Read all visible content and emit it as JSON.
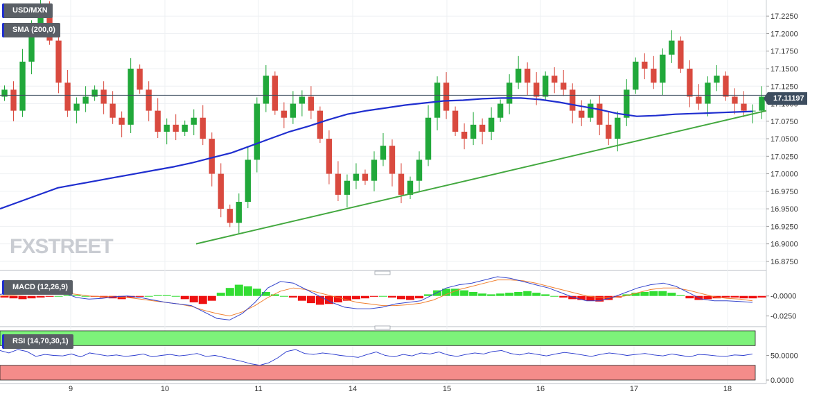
{
  "chart_data": [
    {
      "panel": "price",
      "type": "candlestick",
      "legend": [
        "USD/MXN",
        "SMA (200,0)"
      ],
      "yticks": [
        "17.2250",
        "17.2000",
        "17.1750",
        "17.1500",
        "17.1250",
        "17.1000",
        "17.0750",
        "17.0500",
        "17.0250",
        "17.0000",
        "16.9750",
        "16.9500",
        "16.9250",
        "16.9000",
        "16.8750"
      ],
      "ylim": [
        16.865,
        17.244
      ],
      "last_price": "17.11197",
      "xticks": [
        "9",
        "10",
        "11",
        "14",
        "15",
        "16",
        "17",
        "18"
      ],
      "close_path": [
        17.12,
        17.09,
        17.16,
        17.21,
        17.24,
        17.19,
        17.13,
        17.09,
        17.1,
        17.11,
        17.12,
        17.1,
        17.08,
        17.07,
        17.15,
        17.12,
        17.09,
        17.06,
        17.07,
        17.06,
        17.07,
        17.08,
        17.05,
        17.0,
        16.95,
        16.93,
        16.96,
        17.02,
        17.1,
        17.14,
        17.09,
        17.08,
        17.1,
        17.11,
        17.09,
        17.05,
        17.0,
        16.97,
        16.99,
        17.0,
        16.99,
        17.02,
        17.04,
        17.0,
        16.97,
        16.99,
        17.02,
        17.08,
        17.13,
        17.09,
        17.06,
        17.05,
        17.07,
        17.06,
        17.08,
        17.1,
        17.13,
        17.15,
        17.13,
        17.11,
        17.14,
        17.13,
        17.12,
        17.09,
        17.08,
        17.1,
        17.07,
        17.05,
        17.08,
        17.12,
        17.16,
        17.15,
        17.13,
        17.17,
        17.19,
        17.15,
        17.11,
        17.1,
        17.13,
        17.14,
        17.11,
        17.1,
        17.09,
        17.09,
        17.11
      ],
      "sma_200": [
        16.95,
        16.96,
        16.97,
        16.98,
        16.985,
        16.99,
        16.995,
        17.0,
        17.005,
        17.01,
        17.016,
        17.023,
        17.03,
        17.04,
        17.05,
        17.06,
        17.068,
        17.077,
        17.085,
        17.09,
        17.094,
        17.098,
        17.101,
        17.104,
        17.105,
        17.107,
        17.108,
        17.108,
        17.106,
        17.102,
        17.097,
        17.092,
        17.086,
        17.082,
        17.083,
        17.085,
        17.086,
        17.087,
        17.088,
        17.089
      ],
      "trendline": {
        "from": 16.9,
        "to": 17.09
      }
    },
    {
      "panel": "macd",
      "type": "histogram+line",
      "legend": "MACD (12,26,9)",
      "yticks": [
        "-0.0000",
        "-0.0250"
      ],
      "histogram": [
        -0.002,
        -0.003,
        -0.004,
        -0.003,
        -0.002,
        -0.001,
        0.0,
        0.001,
        0.001,
        0.0,
        -0.001,
        -0.002,
        -0.003,
        -0.004,
        -0.002,
        -0.001,
        0.0,
        0.001,
        0.001,
        0.0,
        -0.004,
        -0.008,
        -0.01,
        -0.006,
        0.004,
        0.01,
        0.014,
        0.012,
        0.009,
        0.005,
        0.002,
        0.0,
        -0.002,
        -0.006,
        -0.009,
        -0.011,
        -0.01,
        -0.008,
        -0.006,
        -0.004,
        -0.003,
        -0.001,
        0.0,
        -0.002,
        -0.004,
        -0.005,
        -0.003,
        0.002,
        0.007,
        0.009,
        0.009,
        0.007,
        0.005,
        0.003,
        0.002,
        0.003,
        0.004,
        0.005,
        0.006,
        0.004,
        0.002,
        0.0,
        -0.002,
        -0.004,
        -0.005,
        -0.006,
        -0.007,
        -0.005,
        -0.002,
        0.002,
        0.004,
        0.005,
        0.006,
        0.006,
        0.004,
        0.001,
        -0.003,
        -0.005,
        -0.004,
        -0.003,
        -0.002,
        -0.002,
        -0.003,
        -0.003,
        -0.002
      ],
      "macd_line": [
        0.002,
        0.004,
        0.008,
        0.012,
        0.01,
        0.004,
        -0.002,
        -0.004,
        -0.003,
        -0.001,
        0.0,
        -0.002,
        -0.005,
        -0.008,
        -0.01,
        -0.012,
        -0.02,
        -0.028,
        -0.03,
        -0.022,
        -0.008,
        0.01,
        0.018,
        0.016,
        0.008,
        0.0,
        -0.008,
        -0.014,
        -0.016,
        -0.016,
        -0.014,
        -0.01,
        -0.008,
        -0.006,
        0.002,
        0.01,
        0.014,
        0.016,
        0.02,
        0.024,
        0.022,
        0.018,
        0.014,
        0.01,
        0.004,
        -0.002,
        -0.006,
        -0.006,
        -0.002,
        0.004,
        0.01,
        0.014,
        0.016,
        0.012,
        0.004,
        -0.004,
        -0.006,
        -0.006,
        -0.007,
        -0.008
      ],
      "signal_line": [
        0.0,
        0.001,
        0.002,
        0.004,
        0.005,
        0.004,
        0.002,
        0.0,
        -0.001,
        -0.001,
        -0.002,
        -0.004,
        -0.006,
        -0.008,
        -0.01,
        -0.013,
        -0.018,
        -0.022,
        -0.025,
        -0.02,
        -0.012,
        -0.002,
        0.006,
        0.01,
        0.008,
        0.004,
        0.0,
        -0.004,
        -0.008,
        -0.01,
        -0.012,
        -0.012,
        -0.011,
        -0.009,
        -0.005,
        0.002,
        0.008,
        0.012,
        0.016,
        0.02,
        0.02,
        0.019,
        0.016,
        0.012,
        0.008,
        0.004,
        0.0,
        -0.002,
        -0.002,
        0.0,
        0.004,
        0.008,
        0.01,
        0.01,
        0.007,
        0.003,
        -0.001,
        -0.003,
        -0.004,
        -0.006
      ]
    },
    {
      "panel": "rsi",
      "type": "line",
      "legend": "RSI (14,70,30,1)",
      "yticks": [
        "50.0000",
        "0.0000"
      ],
      "zones": {
        "overbought": 70,
        "oversold": 30
      },
      "values": [
        60,
        55,
        62,
        58,
        48,
        52,
        50,
        49,
        53,
        47,
        55,
        52,
        49,
        51,
        48,
        50,
        53,
        47,
        50,
        52,
        49,
        51,
        54,
        48,
        50,
        46,
        42,
        38,
        33,
        30,
        35,
        45,
        58,
        62,
        54,
        52,
        55,
        53,
        50,
        48,
        46,
        52,
        57,
        50,
        47,
        52,
        49,
        55,
        53,
        57,
        51,
        48,
        52,
        55,
        53,
        58,
        60,
        54,
        51,
        55,
        52,
        49,
        53,
        56,
        54,
        51,
        48,
        52,
        55,
        53,
        50,
        52,
        54,
        51,
        49,
        53,
        50,
        47,
        52,
        51,
        49,
        48,
        51,
        50,
        53
      ]
    }
  ],
  "colors": {
    "up": "#21a83a",
    "down": "#d94a3f",
    "sma": "#1f2ecf",
    "trend": "#43a83f",
    "macd_pos": "#33dd33",
    "macd_neg": "#ee1111",
    "macd_line": "#3344cc",
    "signal": "#f08030",
    "rsi": "#2233cc",
    "ob_zone": "#7df27a",
    "os_zone": "#f48c8a"
  },
  "brand": "FXSTREET"
}
